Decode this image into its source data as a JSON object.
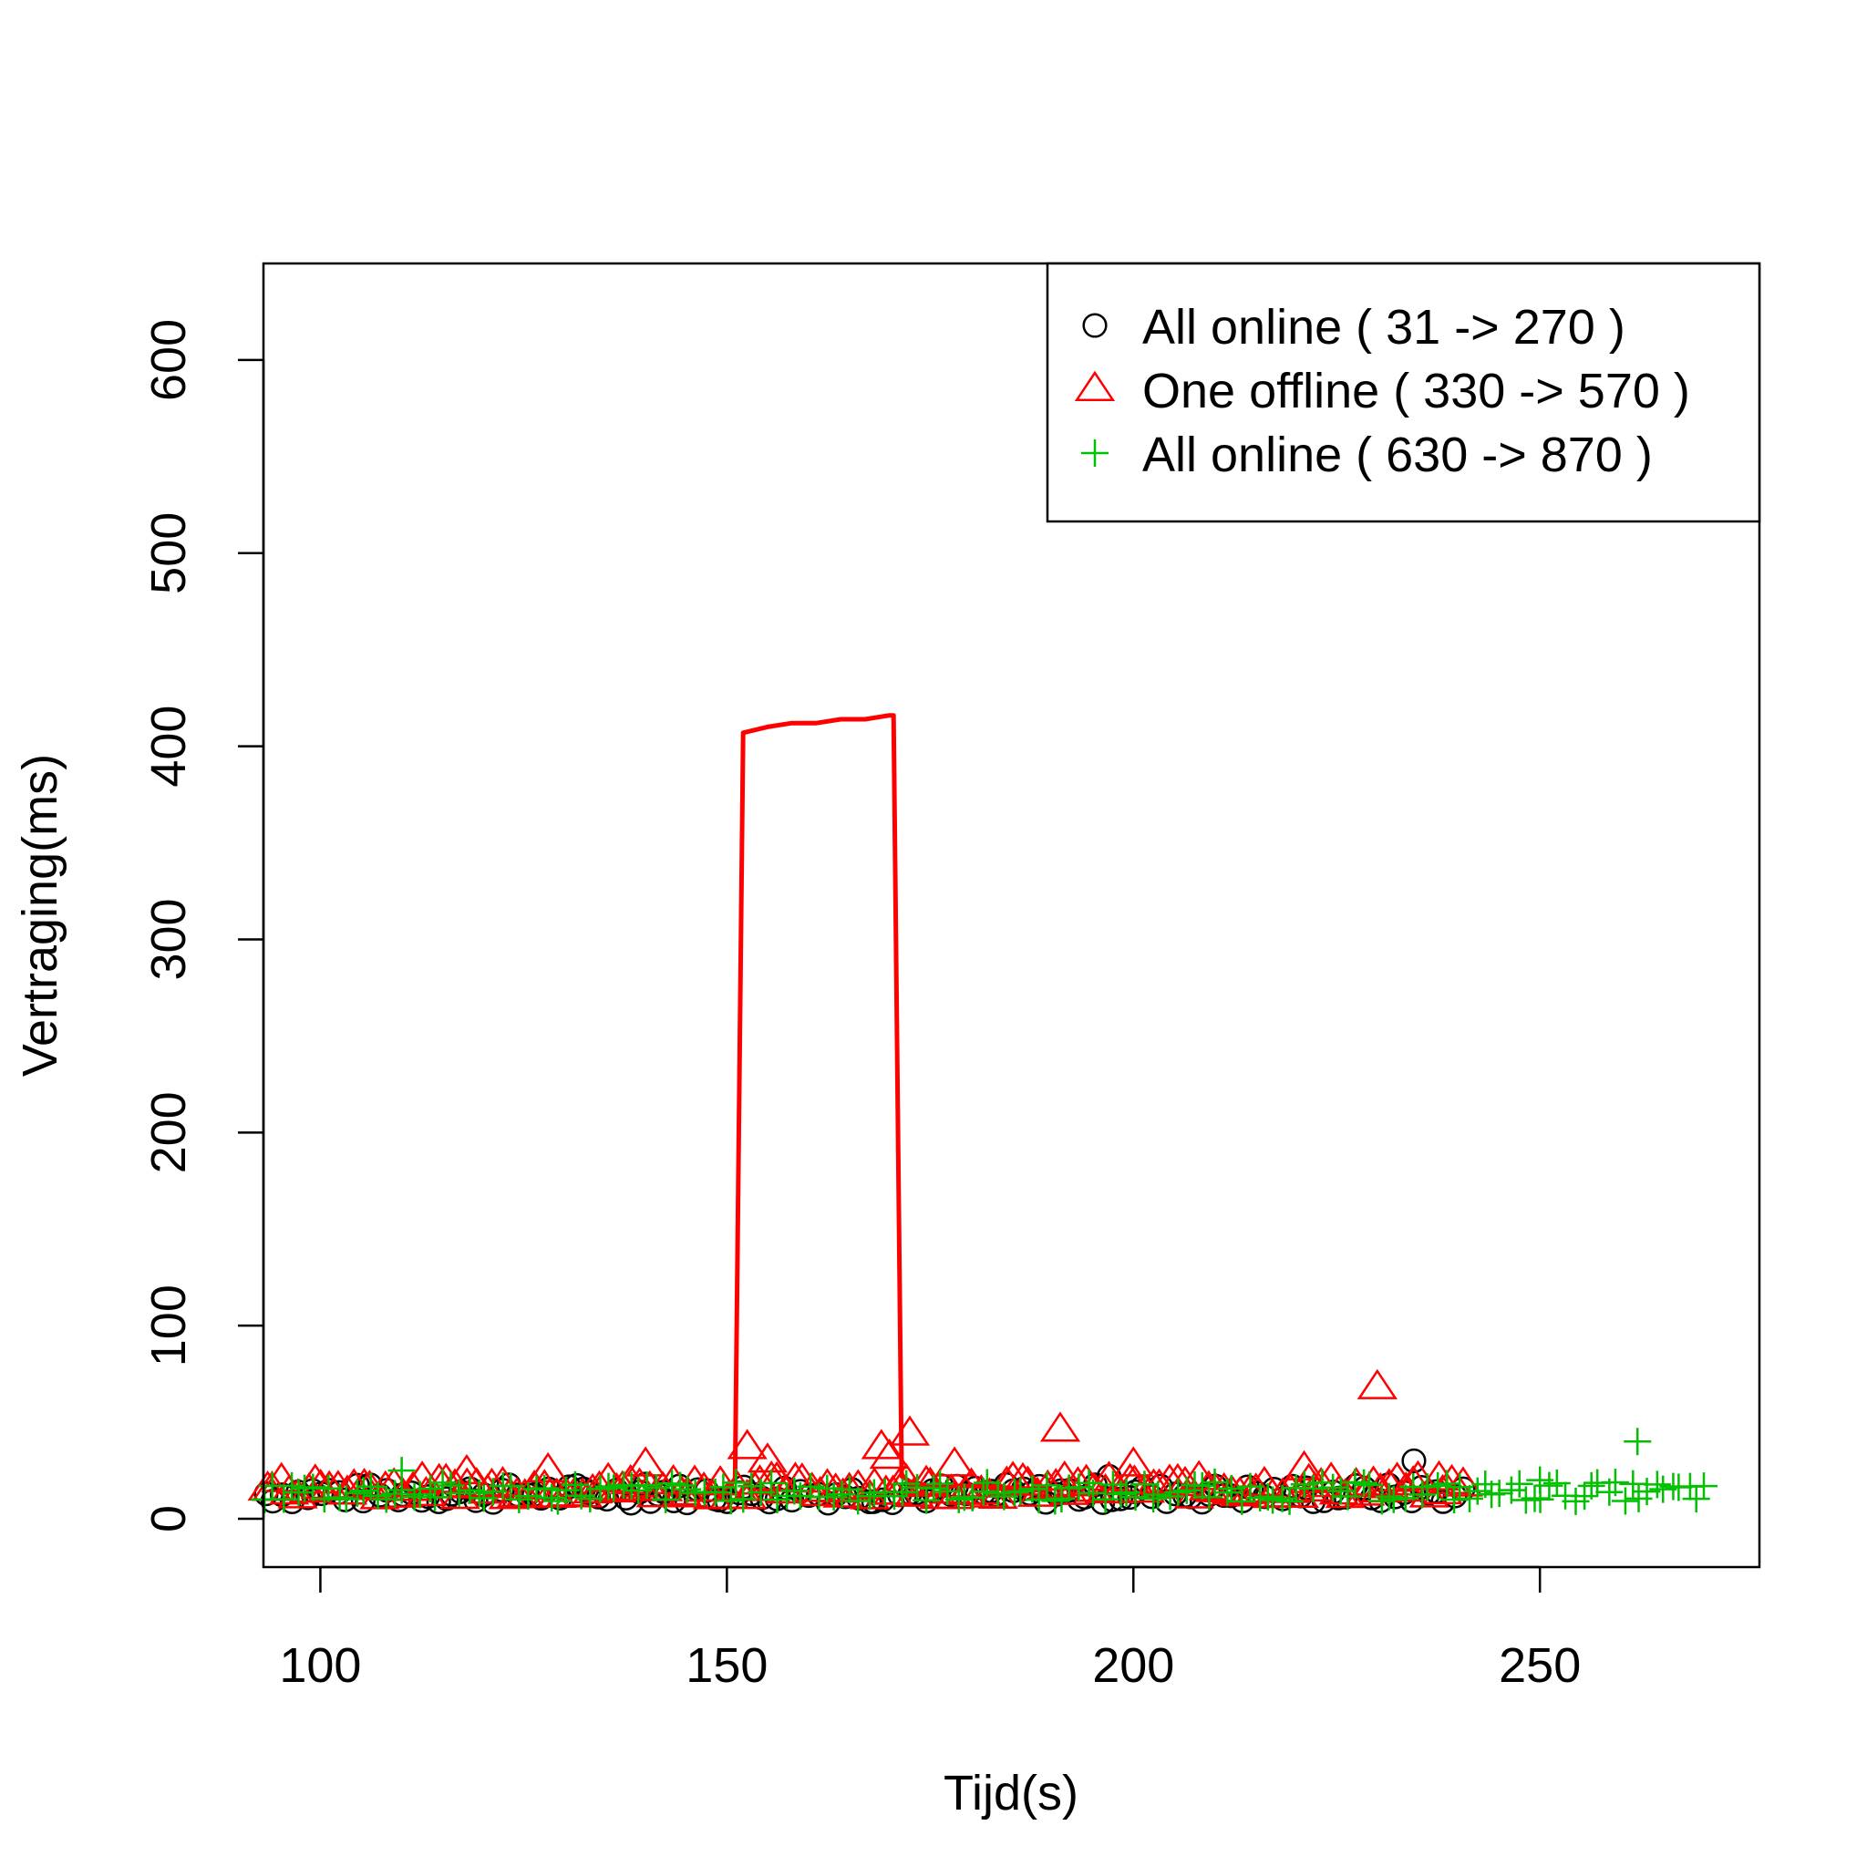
{
  "chart_data": {
    "type": "scatter",
    "title": "",
    "xlabel": "Tijd(s)",
    "ylabel": "Vertraging(ms)",
    "xlim": [
      93,
      277
    ],
    "ylim": [
      -25,
      650
    ],
    "x_ticks": [
      100,
      150,
      200,
      250
    ],
    "y_ticks": [
      0,
      100,
      200,
      300,
      400,
      500,
      600
    ],
    "grid": false,
    "legend_position": "top-right",
    "series": [
      {
        "name": "All online ( 31 -> 270 )",
        "color": "#000000",
        "marker": "circle",
        "baseline": 13,
        "x_range": [
          93,
          240
        ],
        "outliers": [
          {
            "x": 234.5,
            "y": 30
          },
          {
            "x": 140,
            "y": 18
          },
          {
            "x": 197,
            "y": 22
          }
        ]
      },
      {
        "name": "One offline ( 330 -> 570 )",
        "color": "#ff0000",
        "marker": "triangle",
        "baseline": 16,
        "x_range": [
          93,
          240
        ],
        "outliers": [
          {
            "x": 152.5,
            "y": 37
          },
          {
            "x": 155,
            "y": 30
          },
          {
            "x": 169,
            "y": 37
          },
          {
            "x": 170,
            "y": 32
          },
          {
            "x": 172.5,
            "y": 44
          },
          {
            "x": 178,
            "y": 28
          },
          {
            "x": 191,
            "y": 46
          },
          {
            "x": 200,
            "y": 28
          },
          {
            "x": 221,
            "y": 26
          },
          {
            "x": 230,
            "y": 68
          },
          {
            "x": 140,
            "y": 28
          },
          {
            "x": 128,
            "y": 25
          },
          {
            "x": 118,
            "y": 24
          }
        ],
        "line": {
          "x": [
            150,
            151,
            152,
            153,
            155,
            158,
            161,
            164,
            167,
            170,
            170.5,
            171.5,
            173,
            176,
            180,
            185,
            190
          ],
          "y": [
            16,
            20,
            407,
            408,
            410,
            412,
            412,
            414,
            414,
            416,
            416,
            22,
            18,
            17,
            17,
            16,
            15
          ]
        }
      },
      {
        "name": "All online ( 630 -> 870 )",
        "color": "#00c000",
        "marker": "plus",
        "baseline": 14,
        "x_range": [
          93,
          270
        ],
        "outliers": [
          {
            "x": 262,
            "y": 40
          },
          {
            "x": 110,
            "y": 25
          },
          {
            "x": 250,
            "y": 20
          }
        ]
      }
    ]
  }
}
